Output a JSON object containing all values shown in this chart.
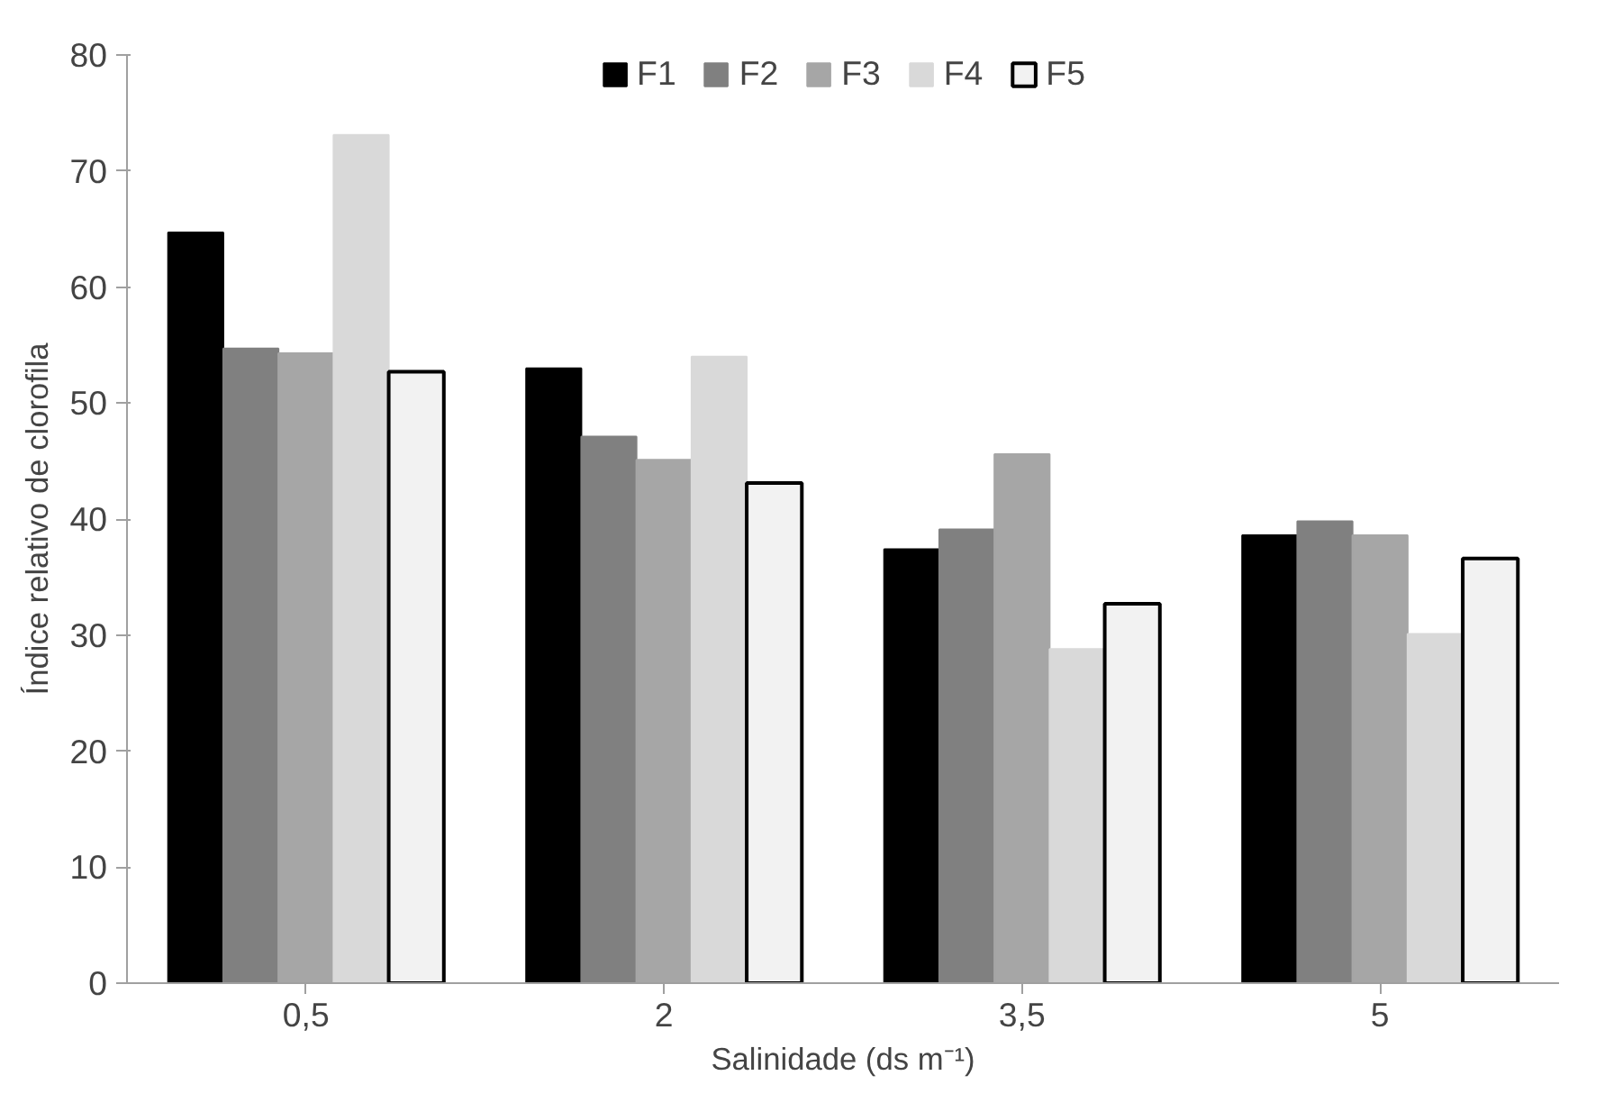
{
  "chart_data": {
    "type": "bar",
    "xlabel": "Salinidade (ds m⁻¹)",
    "ylabel": "Índice relativo de clorofila",
    "categories": [
      "0,5",
      "2",
      "3,5",
      "5"
    ],
    "series": [
      {
        "name": "F1",
        "color": "#000000",
        "values": [
          64.7,
          53.0,
          37.4,
          38.6
        ]
      },
      {
        "name": "F2",
        "color": "#808080",
        "values": [
          54.7,
          47.1,
          39.1,
          39.8
        ]
      },
      {
        "name": "F3",
        "color": "#a6a6a6",
        "values": [
          54.3,
          45.1,
          45.6,
          38.6
        ]
      },
      {
        "name": "F4",
        "color": "#d9d9d9",
        "values": [
          73.1,
          54.0,
          28.8,
          30.1
        ]
      },
      {
        "name": "F5",
        "color": "#f2f2f2",
        "values": [
          52.7,
          43.1,
          32.7,
          36.6
        ]
      }
    ],
    "ylim": [
      0,
      80
    ],
    "yticks": [
      0,
      10,
      20,
      30,
      40,
      50,
      60,
      70,
      80
    ],
    "grid": false,
    "legend": "top"
  }
}
